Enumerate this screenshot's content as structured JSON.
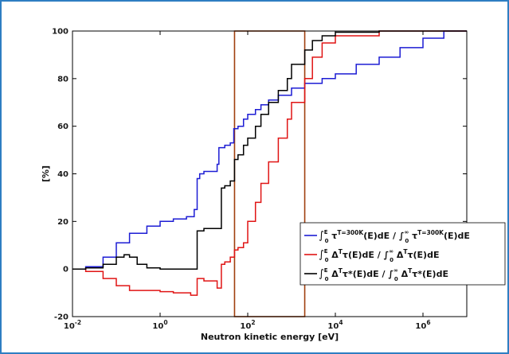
{
  "chart_data": {
    "type": "line",
    "xlabel": "Neutron kinetic energy [eV]",
    "ylabel": "[%]",
    "xscale": "log",
    "xlim": [
      0.01,
      10000000
    ],
    "ylim": [
      -20,
      100
    ],
    "grid": false,
    "legend_position": "lower-right",
    "x_ticks": [
      {
        "value": 0.01,
        "base": "10",
        "exp": "-2"
      },
      {
        "value": 1,
        "base": "10",
        "exp": "0"
      },
      {
        "value": 100,
        "base": "10",
        "exp": "2"
      },
      {
        "value": 10000,
        "base": "10",
        "exp": "4"
      },
      {
        "value": 1000000,
        "base": "10",
        "exp": "6"
      }
    ],
    "y_ticks": [
      "-20",
      "0",
      "20",
      "40",
      "60",
      "80",
      "100"
    ],
    "highlight_box": {
      "x_range": [
        50,
        2000
      ],
      "y_range": [
        -20,
        100
      ],
      "color": "#a0400f"
    },
    "series": [
      {
        "key": "blue",
        "color": "#1c1cd4",
        "legend": {
          "pre": "∫",
          "sub": "0",
          "sup": "E",
          "body1": " τ",
          "body1_sup": "T=300K",
          "body2": "(E)dE / ∫",
          "sub2": "0",
          "sup2": "∞",
          "body3": " τ",
          "body3_sup": "T=300K",
          "body4": "(E)dE"
        },
        "x": [
          0.01,
          0.02,
          0.05,
          0.1,
          0.2,
          0.5,
          1,
          2,
          4,
          5,
          6,
          7,
          8,
          10,
          20,
          22,
          30,
          40,
          48,
          60,
          80,
          100,
          150,
          200,
          300,
          500,
          1000,
          2000,
          5000,
          10000,
          30000,
          100000,
          300000,
          1000000,
          3000000,
          10000000
        ],
        "y": [
          0,
          1,
          5,
          11,
          15,
          18,
          20,
          21,
          22,
          22,
          25,
          38,
          40,
          41,
          44,
          51,
          52,
          53,
          59,
          60,
          63,
          65,
          67,
          69,
          71,
          73,
          76,
          78,
          80,
          82,
          86,
          89,
          93,
          97,
          100,
          100
        ]
      },
      {
        "key": "red",
        "color": "#e01414",
        "legend": {
          "pre": "∫",
          "sub": "0",
          "sup": "E",
          "body1": " Δ",
          "body1_sup": "T",
          "body2": "τ(E)dE / ∫",
          "sub2": "0",
          "sup2": "∞",
          "body3": " Δ",
          "body3_sup": "T",
          "body4": "τ(E)dE"
        },
        "x": [
          0.01,
          0.02,
          0.05,
          0.1,
          0.2,
          0.5,
          1,
          2,
          5,
          6,
          7,
          10,
          20,
          25,
          30,
          40,
          50,
          60,
          80,
          100,
          150,
          200,
          300,
          500,
          800,
          1000,
          2000,
          3000,
          5000,
          10000,
          100000,
          10000000
        ],
        "y": [
          0,
          -1,
          -4,
          -7,
          -9,
          -9,
          -9.5,
          -10,
          -11,
          -11,
          -4,
          -5,
          -8,
          2,
          3,
          5,
          8,
          9,
          11,
          20,
          28,
          36,
          45,
          55,
          63,
          70,
          80,
          89,
          95,
          98,
          100,
          100
        ]
      },
      {
        "key": "black",
        "color": "#000000",
        "legend": {
          "pre": "∫",
          "sub": "0",
          "sup": "E",
          "body1": " Δ",
          "body1_sup": "T",
          "body2": "τ*(E)dE / ∫",
          "sub2": "0",
          "sup2": "∞",
          "body3": " Δ",
          "body3_sup": "T",
          "body4": "τ*(E)dE"
        },
        "x": [
          0.01,
          0.02,
          0.05,
          0.1,
          0.15,
          0.2,
          0.3,
          0.5,
          1,
          2,
          5,
          6,
          7,
          10,
          20,
          25,
          30,
          40,
          50,
          60,
          80,
          100,
          150,
          200,
          300,
          500,
          800,
          1000,
          2000,
          3000,
          5000,
          10000,
          100000,
          10000000
        ],
        "y": [
          0,
          0.5,
          2,
          5,
          6,
          5,
          2,
          0.5,
          0,
          0,
          0,
          0,
          16,
          17,
          17,
          34,
          35,
          37,
          46,
          48,
          52,
          55,
          60,
          65,
          70,
          75,
          80,
          86,
          92,
          96,
          98,
          99.5,
          100,
          100
        ]
      }
    ]
  }
}
